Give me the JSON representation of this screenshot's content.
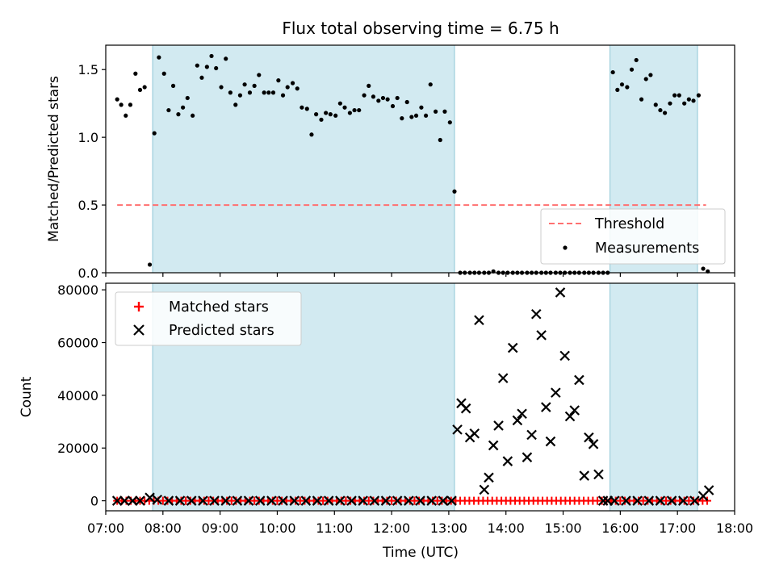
{
  "chart_data": {
    "title": "Flux total observing time = 6.75 h",
    "xlabel": "Time (UTC)",
    "x_unit": "hours UTC",
    "xlim": [
      7.0,
      18.0
    ],
    "x_ticks": [
      7,
      8,
      9,
      10,
      11,
      12,
      13,
      14,
      15,
      16,
      17,
      18
    ],
    "x_tick_labels": [
      "07:00",
      "08:00",
      "09:00",
      "10:00",
      "11:00",
      "12:00",
      "13:00",
      "14:00",
      "15:00",
      "16:00",
      "17:00",
      "18:00"
    ],
    "shaded_intervals": [
      [
        7.82,
        13.1
      ],
      [
        15.82,
        17.35
      ]
    ],
    "shade_color": "#add8e6",
    "panels": [
      {
        "type": "scatter",
        "ylabel": "Matched/Predicted stars",
        "ylim": [
          0,
          1.68
        ],
        "y_ticks": [
          0,
          0.5,
          1.0,
          1.5
        ],
        "y_tick_labels": [
          "0.0",
          "0.5",
          "1.0",
          "1.5"
        ],
        "threshold": {
          "name": "Threshold",
          "value": 0.5,
          "x_range": [
            7.2,
            17.5
          ],
          "color": "#ff7070"
        },
        "legend": {
          "placement": "lower right",
          "entries": [
            "Threshold",
            "Measurements"
          ]
        },
        "series": [
          {
            "name": "Measurements",
            "color": "#000000",
            "x": [
              7.2,
              7.27,
              7.35,
              7.43,
              7.52,
              7.6,
              7.68,
              7.77,
              7.85,
              7.93,
              8.02,
              8.1,
              8.18,
              8.27,
              8.35,
              8.43,
              8.52,
              8.6,
              8.68,
              8.77,
              8.85,
              8.93,
              9.02,
              9.1,
              9.18,
              9.27,
              9.35,
              9.43,
              9.52,
              9.6,
              9.68,
              9.77,
              9.85,
              9.93,
              10.02,
              10.1,
              10.18,
              10.27,
              10.35,
              10.43,
              10.52,
              10.6,
              10.68,
              10.77,
              10.85,
              10.93,
              11.02,
              11.1,
              11.18,
              11.27,
              11.35,
              11.43,
              11.52,
              11.6,
              11.68,
              11.77,
              11.85,
              11.93,
              12.02,
              12.1,
              12.18,
              12.27,
              12.35,
              12.43,
              12.52,
              12.6,
              12.68,
              12.77,
              12.85,
              12.93,
              13.02,
              13.1,
              13.2,
              13.28,
              13.37,
              13.45,
              13.53,
              13.62,
              13.7,
              13.78,
              13.87,
              13.95,
              14.03,
              14.12,
              14.2,
              14.28,
              14.37,
              14.45,
              14.53,
              14.62,
              14.7,
              14.78,
              14.87,
              14.95,
              15.03,
              15.12,
              15.2,
              15.28,
              15.37,
              15.45,
              15.53,
              15.62,
              15.7,
              15.78,
              15.87,
              15.95,
              16.03,
              16.12,
              16.2,
              16.28,
              16.37,
              16.45,
              16.53,
              16.62,
              16.7,
              16.78,
              16.87,
              16.95,
              17.03,
              17.12,
              17.2,
              17.28,
              17.37,
              17.45,
              17.53
            ],
            "y": [
              1.28,
              1.24,
              1.16,
              1.24,
              1.47,
              1.35,
              1.37,
              0.06,
              1.03,
              1.59,
              1.47,
              1.2,
              1.38,
              1.17,
              1.22,
              1.29,
              1.16,
              1.53,
              1.44,
              1.52,
              1.6,
              1.51,
              1.37,
              1.58,
              1.33,
              1.24,
              1.31,
              1.39,
              1.33,
              1.38,
              1.46,
              1.33,
              1.33,
              1.33,
              1.42,
              1.31,
              1.37,
              1.4,
              1.36,
              1.22,
              1.21,
              1.02,
              1.17,
              1.13,
              1.18,
              1.17,
              1.16,
              1.25,
              1.22,
              1.18,
              1.2,
              1.2,
              1.31,
              1.38,
              1.3,
              1.27,
              1.29,
              1.28,
              1.23,
              1.29,
              1.14,
              1.26,
              1.15,
              1.16,
              1.22,
              1.16,
              1.39,
              1.19,
              0.98,
              1.19,
              1.11,
              0.6,
              0,
              0,
              0,
              0,
              0,
              0,
              0,
              0.01,
              0,
              0,
              0,
              0,
              0,
              0,
              0,
              0,
              0,
              0,
              0,
              0,
              0,
              0,
              0,
              0,
              0,
              0,
              0,
              0,
              0,
              0,
              0,
              0,
              1.48,
              1.35,
              1.39,
              1.37,
              1.5,
              1.57,
              1.28,
              1.43,
              1.46,
              1.24,
              1.2,
              1.18,
              1.25,
              1.31,
              1.31,
              1.25,
              1.28,
              1.27,
              1.31,
              0.03,
              0.01
            ]
          }
        ]
      },
      {
        "type": "scatter",
        "ylabel": "Count",
        "ylim": [
          -3800,
          82500
        ],
        "y_ticks": [
          0,
          20000,
          40000,
          60000,
          80000
        ],
        "y_tick_labels": [
          "0",
          "20000",
          "40000",
          "60000",
          "80000"
        ],
        "legend": {
          "placement": "upper left",
          "entries": [
            "Matched stars",
            "Predicted stars"
          ]
        },
        "series": [
          {
            "name": "Matched stars",
            "marker": "plus",
            "color": "#ff0000",
            "x_range": [
              7.2,
              17.55
            ],
            "x_step": 0.08,
            "value": 0
          },
          {
            "name": "Predicted stars",
            "marker": "x",
            "color": "#000000",
            "x": [
              7.2,
              7.33,
              7.47,
              7.6,
              7.77,
              7.9,
              8.1,
              8.3,
              8.5,
              8.7,
              8.9,
              9.1,
              9.3,
              9.5,
              9.7,
              9.9,
              10.1,
              10.3,
              10.5,
              10.7,
              10.9,
              11.1,
              11.3,
              11.5,
              11.7,
              11.9,
              12.1,
              12.3,
              12.5,
              12.7,
              12.9,
              13.05,
              13.15,
              13.22,
              13.3,
              13.37,
              13.45,
              13.53,
              13.62,
              13.7,
              13.78,
              13.87,
              13.95,
              14.03,
              14.12,
              14.2,
              14.28,
              14.37,
              14.45,
              14.53,
              14.62,
              14.7,
              14.78,
              14.87,
              14.95,
              15.03,
              15.12,
              15.2,
              15.28,
              15.37,
              15.45,
              15.53,
              15.62,
              15.7,
              15.78,
              15.9,
              16.1,
              16.3,
              16.5,
              16.7,
              16.9,
              17.1,
              17.3,
              17.45,
              17.55
            ],
            "y": [
              0,
              0,
              0,
              0,
              1200,
              400,
              0,
              0,
              0,
              0,
              0,
              0,
              0,
              0,
              0,
              0,
              0,
              0,
              0,
              0,
              0,
              0,
              0,
              0,
              0,
              0,
              0,
              0,
              0,
              0,
              0,
              0,
              27000,
              37000,
              35000,
              24000,
              25500,
              68500,
              4200,
              8800,
              21000,
              28500,
              46500,
              15000,
              58000,
              30500,
              33000,
              16500,
              25000,
              70800,
              62800,
              35500,
              22500,
              41000,
              79000,
              55000,
              32000,
              34300,
              45800,
              9500,
              24000,
              21500,
              10000,
              0,
              0,
              0,
              0,
              0,
              0,
              0,
              0,
              0,
              0,
              1800,
              4000
            ]
          }
        ]
      }
    ]
  }
}
